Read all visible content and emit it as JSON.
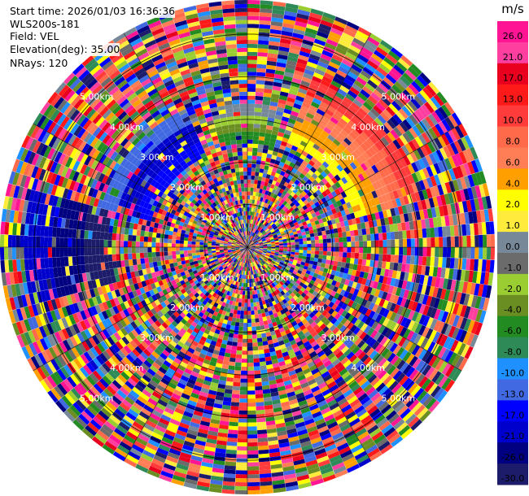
{
  "header": {
    "start_time": "Start time: 2026/01/03 16:36:36",
    "instrument": "WLS200s-181",
    "field": "Field: VEL",
    "elevation": "Elevation(deg): 35.00",
    "nrays": "NRays: 120"
  },
  "chart_data": {
    "type": "heatmap",
    "projection": "polar-ppi",
    "nrays": 120,
    "range_rings_km": [
      1,
      2,
      3,
      4,
      5
    ],
    "range_ring_labels": [
      "1.00km",
      "2.00km",
      "3.00km",
      "4.00km",
      "5.00km"
    ],
    "max_range_km": 5.8,
    "colorbar": {
      "unit": "m/s",
      "ticks": [
        "26.0",
        "21.0",
        "17.0",
        "13.0",
        "10.0",
        "8.0",
        "6.0",
        "4.0",
        "2.0",
        "1.0",
        "0.0",
        "-1.0",
        "-2.0",
        "-4.0",
        "-6.0",
        "-8.0",
        "-10.0",
        "-13.0",
        "-17.0",
        "-21.0",
        "-26.0",
        "-30.0"
      ],
      "colors": [
        "#ff1493",
        "#ff3fa0",
        "#e8001e",
        "#ff1a1a",
        "#ff3b3b",
        "#ff6a4a",
        "#ff7e55",
        "#ffa000",
        "#ffff00",
        "#ffeb3b",
        "#778899",
        "#6b6b6b",
        "#9acd32",
        "#6b8e23",
        "#228b22",
        "#2e8b57",
        "#1e90ff",
        "#4169e1",
        "#0000ff",
        "#0000cd",
        "#000080",
        "#1c1c6b"
      ]
    },
    "coherent_regions": [
      {
        "description_key": "positive",
        "az_from": 20,
        "az_to": 75,
        "r_from": 0.45,
        "r_to": 0.72,
        "colors": [
          "#ffff00",
          "#ffa000",
          "#ff7e55",
          "#ff6a4a",
          "#ff3b3b"
        ]
      },
      {
        "description_key": "negative",
        "az_from": 285,
        "az_to": 335,
        "r_from": 0.4,
        "r_to": 0.62,
        "colors": [
          "#0000ff",
          "#0000cd",
          "#4169e1"
        ]
      },
      {
        "description_key": "west",
        "az_from": 255,
        "az_to": 285,
        "r_from": 0.55,
        "r_to": 0.9,
        "colors": [
          "#1c1c6b",
          "#000080",
          "#0000cd"
        ]
      },
      {
        "description_key": "north",
        "az_from": 345,
        "az_to": 15,
        "r_from": 0.42,
        "r_to": 0.58,
        "colors": [
          "#228b22",
          "#6b8e23",
          "#9acd32",
          "#778899"
        ]
      }
    ]
  }
}
